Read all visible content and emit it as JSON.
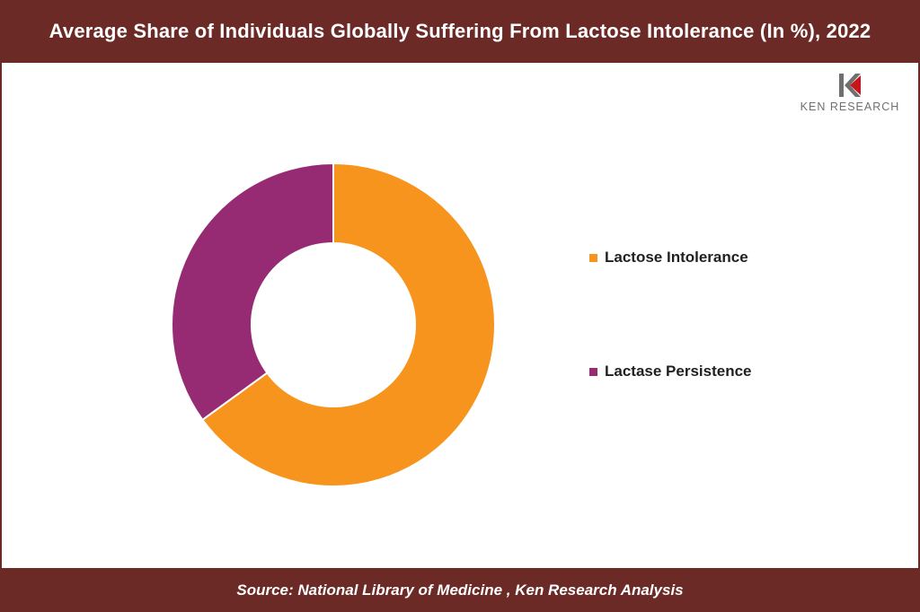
{
  "header": {
    "title": "Average Share of Individuals Globally Suffering From Lactose Intolerance (In %), 2022"
  },
  "logo": {
    "text": "KEN RESEARCH"
  },
  "footer": {
    "source": "Source: National Library of Medicine , Ken Research Analysis"
  },
  "colors": {
    "brand": "#6b2a26",
    "lactose_intolerance": "#f7941d",
    "lactase_persistence": "#962b73"
  },
  "chart_data": {
    "type": "pie",
    "subtype": "donut",
    "title": "Average Share of Individuals Globally Suffering From Lactose Intolerance (In %), 2022",
    "categories": [
      "Lactose Intolerance",
      "Lactase Persistence"
    ],
    "values": [
      65,
      35
    ],
    "colors": [
      "#f7941d",
      "#962b73"
    ],
    "legend_position": "right",
    "data_labels": false
  }
}
